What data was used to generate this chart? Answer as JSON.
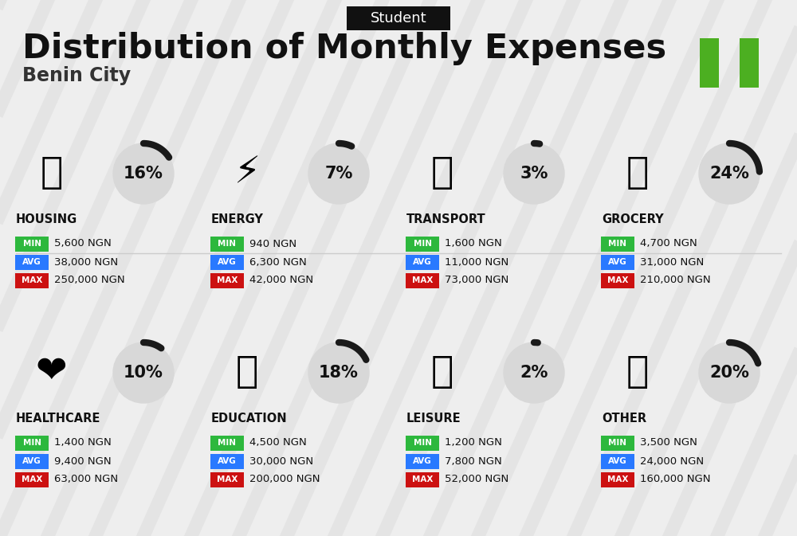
{
  "title": "Distribution of Monthly Expenses",
  "subtitle": "Benin City",
  "tag": "Student",
  "bg_color": "#eeeeee",
  "title_color": "#111111",
  "subtitle_color": "#333333",
  "tag_bg": "#111111",
  "tag_color": "#ffffff",
  "green_color": "#2db83d",
  "blue_color": "#2979ff",
  "red_color": "#cc1111",
  "circle_bg": "#d8d8d8",
  "nigeria_green": "#4caf21",
  "categories": [
    {
      "name": "HOUSING",
      "pct": 16,
      "min": "5,600 NGN",
      "avg": "38,000 NGN",
      "max": "250,000 NGN",
      "row": 0,
      "col": 0
    },
    {
      "name": "ENERGY",
      "pct": 7,
      "min": "940 NGN",
      "avg": "6,300 NGN",
      "max": "42,000 NGN",
      "row": 0,
      "col": 1
    },
    {
      "name": "TRANSPORT",
      "pct": 3,
      "min": "1,600 NGN",
      "avg": "11,000 NGN",
      "max": "73,000 NGN",
      "row": 0,
      "col": 2
    },
    {
      "name": "GROCERY",
      "pct": 24,
      "min": "4,700 NGN",
      "avg": "31,000 NGN",
      "max": "210,000 NGN",
      "row": 0,
      "col": 3
    },
    {
      "name": "HEALTHCARE",
      "pct": 10,
      "min": "1,400 NGN",
      "avg": "9,400 NGN",
      "max": "63,000 NGN",
      "row": 1,
      "col": 0
    },
    {
      "name": "EDUCATION",
      "pct": 18,
      "min": "4,500 NGN",
      "avg": "30,000 NGN",
      "max": "200,000 NGN",
      "row": 1,
      "col": 1
    },
    {
      "name": "LEISURE",
      "pct": 2,
      "min": "1,200 NGN",
      "avg": "7,800 NGN",
      "max": "52,000 NGN",
      "row": 1,
      "col": 2
    },
    {
      "name": "OTHER",
      "pct": 20,
      "min": "3,500 NGN",
      "avg": "24,000 NGN",
      "max": "160,000 NGN",
      "row": 1,
      "col": 3
    }
  ]
}
